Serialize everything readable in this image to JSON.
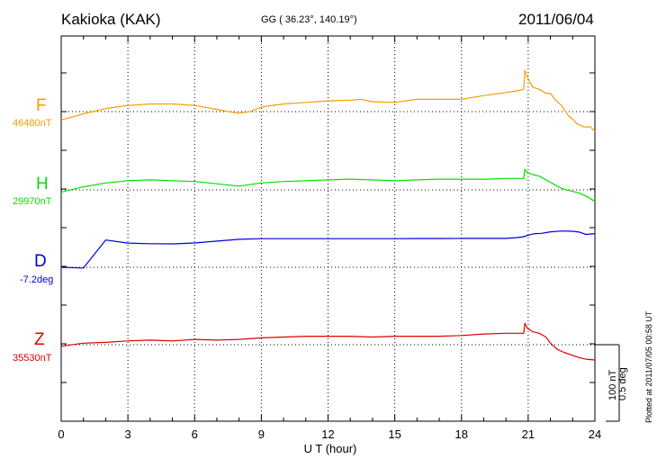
{
  "header": {
    "station": "Kakioka (KAK)",
    "coords": "GG ( 36.23°, 140.19°)",
    "date": "2011/06/04"
  },
  "footer": {
    "plotted": "Plotted at 2011/07/05 00:58 UT"
  },
  "scale": {
    "nT": "100 nT",
    "deg": "0.5 deg"
  },
  "chart_data": {
    "type": "line",
    "title": "Kakioka (KAK)",
    "xlabel": "U T (hour)",
    "xlim": [
      0,
      24
    ],
    "xticks": [
      0,
      3,
      6,
      9,
      12,
      15,
      18,
      21,
      24
    ],
    "xtick_labels": [
      "0",
      "3",
      "6",
      "9",
      "12",
      "15",
      "18",
      "21",
      "24"
    ],
    "grid": true,
    "series": [
      {
        "name": "F",
        "baseline_label": "46480nT",
        "color": "#f0a000",
        "unit": "nT",
        "baseline": 46480,
        "x": [
          0,
          0.5,
          1,
          2,
          3,
          4,
          5,
          6,
          7,
          7.5,
          8,
          8.5,
          9,
          10,
          11,
          12,
          13,
          13.5,
          14,
          15,
          16,
          17,
          18,
          19,
          20,
          20.5,
          20.8,
          20.85,
          20.95,
          21.2,
          21.5,
          21.8,
          22,
          22.2,
          22.5,
          22.8,
          23,
          23.2,
          23.5,
          23.8,
          24
        ],
        "y": [
          46469,
          46473,
          46477,
          46484,
          46488,
          46490,
          46490,
          46488,
          46483,
          46480,
          46478,
          46480,
          46486,
          46490,
          46492,
          46494,
          46495,
          46496,
          46493,
          46492,
          46496,
          46496,
          46496,
          46501,
          46505,
          46507,
          46509,
          46534,
          46526,
          46512,
          46509,
          46504,
          46504,
          46496,
          46488,
          46475,
          46470,
          46464,
          46460,
          46460,
          46454
        ]
      },
      {
        "name": "H",
        "baseline_label": "29970nT",
        "color": "#00e000",
        "unit": "nT",
        "baseline": 29970,
        "x": [
          0,
          1,
          2,
          3,
          4,
          5,
          6,
          7,
          8,
          9,
          10,
          11,
          12,
          13,
          14,
          15,
          16,
          17,
          18,
          19,
          20,
          20.5,
          20.8,
          20.85,
          20.95,
          21.2,
          21.5,
          21.8,
          22,
          22.3,
          22.6,
          23,
          23.3,
          23.6,
          24
        ],
        "y": [
          29967,
          29974,
          29979,
          29982,
          29983,
          29982,
          29981,
          29978,
          29975,
          29979,
          29981,
          29982,
          29983,
          29984,
          29983,
          29982,
          29983,
          29984,
          29984,
          29984,
          29985,
          29985,
          29985,
          29997,
          29993,
          29990,
          29988,
          29983,
          29980,
          29975,
          29971,
          29968,
          29966,
          29962,
          29955
        ]
      },
      {
        "name": "D",
        "baseline_label": "-7.2deg",
        "color": "#0000e0",
        "unit": "deg",
        "baseline": -7.2,
        "x": [
          0,
          1,
          2,
          3,
          4,
          5,
          6,
          7,
          8,
          9,
          10,
          11,
          12,
          13,
          14,
          15,
          16,
          17,
          18,
          19,
          20,
          20.5,
          20.8,
          21,
          21.3,
          21.6,
          22,
          22.5,
          23,
          23.3,
          23.6,
          24
        ],
        "y": [
          -7.2,
          -7.205,
          -7.022,
          -7.042,
          -7.046,
          -7.047,
          -7.041,
          -7.029,
          -7.017,
          -7.013,
          -7.013,
          -7.013,
          -7.013,
          -7.013,
          -7.013,
          -7.013,
          -7.012,
          -7.012,
          -7.011,
          -7.011,
          -7.011,
          -7.006,
          -7.0,
          -6.99,
          -6.98,
          -6.978,
          -6.968,
          -6.963,
          -6.965,
          -6.97,
          -6.985,
          -6.98
        ]
      },
      {
        "name": "Z",
        "baseline_label": "35530nT",
        "color": "#e00000",
        "unit": "nT",
        "baseline": 35530,
        "x": [
          0,
          1,
          2,
          3,
          4,
          5,
          6,
          7,
          8,
          9,
          10,
          11,
          12,
          13,
          14,
          15,
          16,
          17,
          18,
          19,
          20,
          20.5,
          20.8,
          20.85,
          20.95,
          21.2,
          21.5,
          21.8,
          22,
          22.3,
          22.6,
          23,
          23.3,
          23.6,
          24
        ],
        "y": [
          35528,
          35532,
          35533,
          35535,
          35536,
          35535,
          35537,
          35536,
          35537,
          35539,
          35540,
          35541,
          35541,
          35541,
          35540,
          35541,
          35541,
          35541,
          35542,
          35544,
          35545,
          35545,
          35545,
          35558,
          35552,
          35547,
          35545,
          35540,
          35532,
          35524,
          35520,
          35516,
          35513,
          35511,
          35510
        ]
      }
    ]
  }
}
